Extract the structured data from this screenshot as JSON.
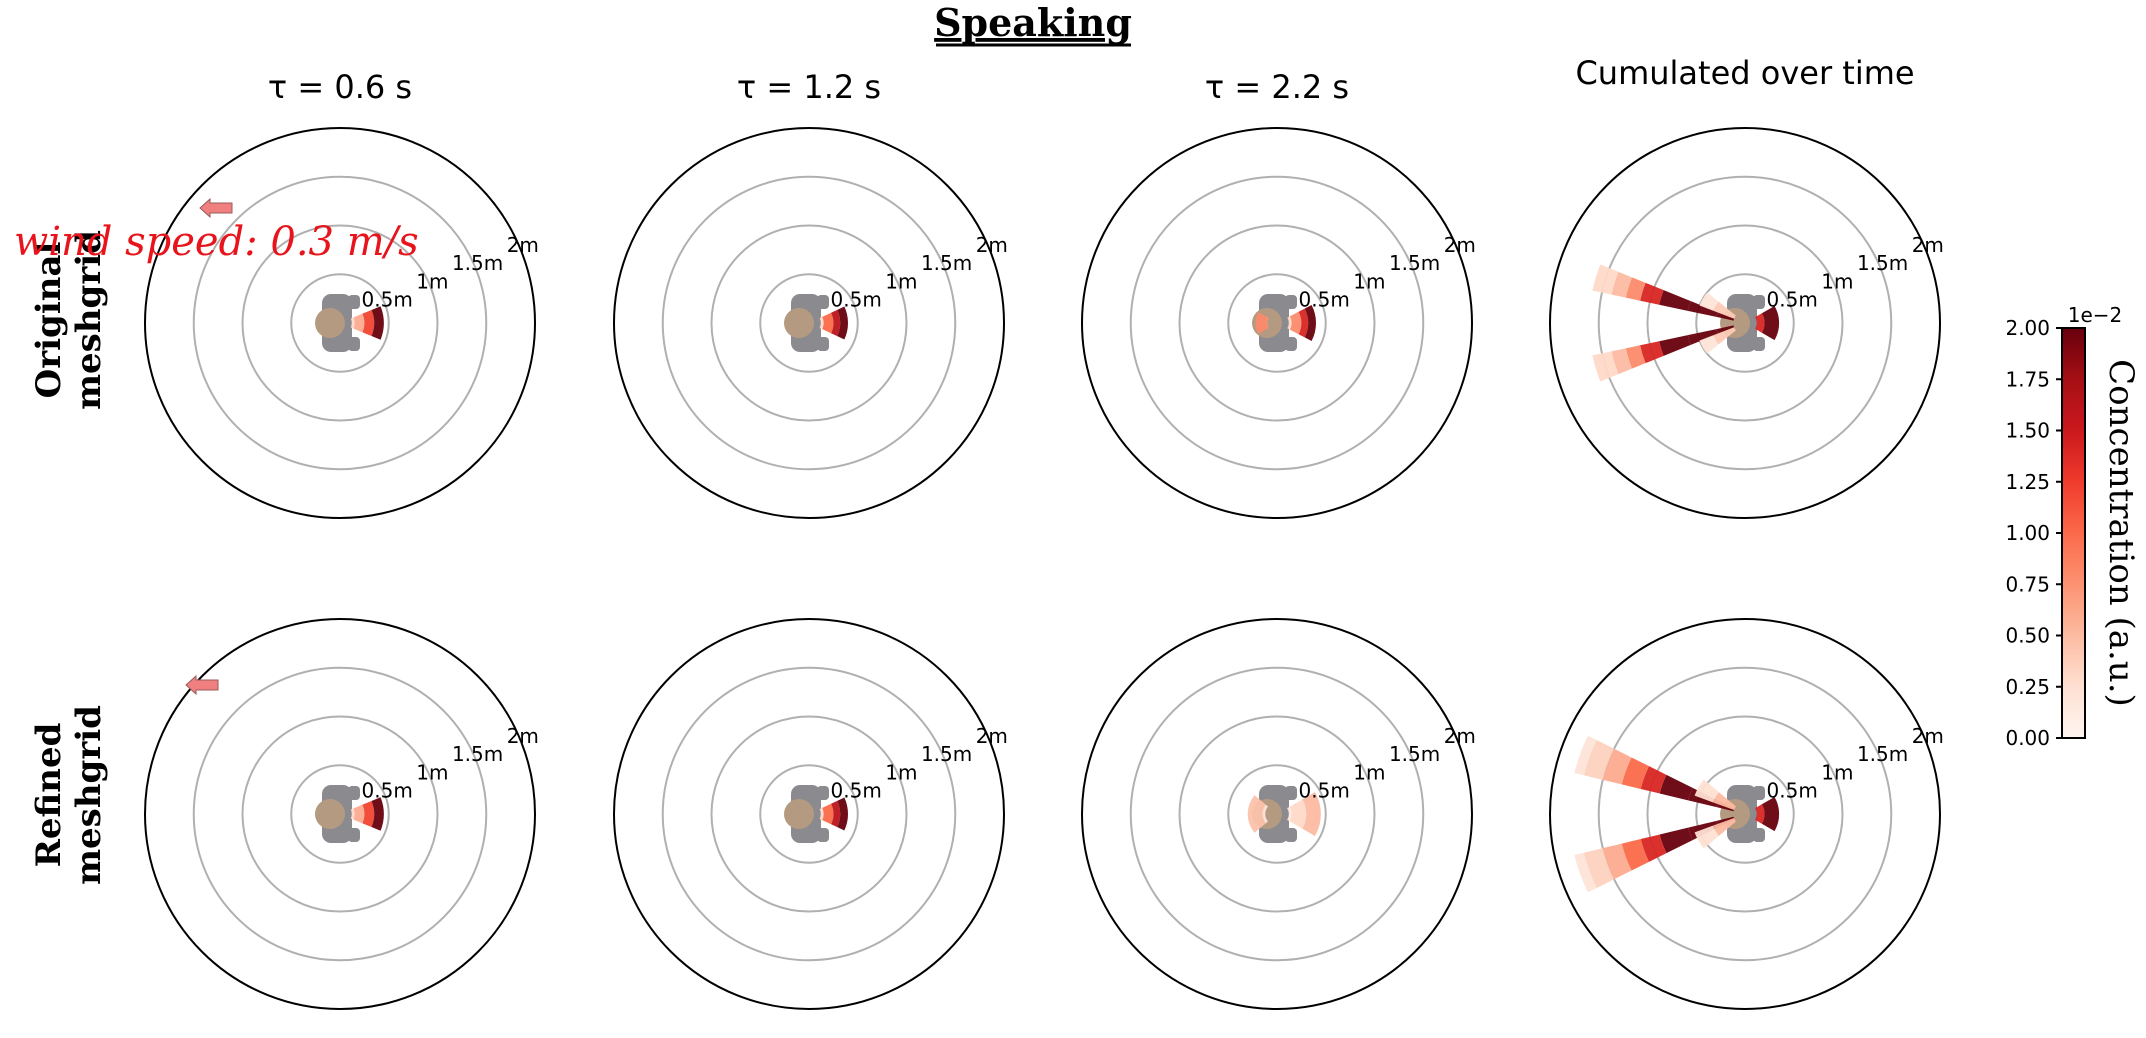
{
  "figure": {
    "title": "Speaking",
    "columns": [
      {
        "label": "τ = 0.6 s"
      },
      {
        "label": "τ = 1.2 s"
      },
      {
        "label": "τ = 2.2 s"
      },
      {
        "label": "Cumulated over time"
      }
    ],
    "rows": [
      {
        "label_line1": "Original",
        "label_line2": "meshgrid"
      },
      {
        "label_line1": "Refined",
        "label_line2": "meshgrid"
      }
    ],
    "wind_label": "wind speed: 0.3 m/s",
    "ring_labels": [
      "0.5m",
      "1m",
      "1.5m",
      "2m"
    ],
    "colorbar": {
      "label": "Concentration (a.u.)",
      "exponent": "1e−2",
      "ticks": [
        "0.00",
        "0.25",
        "0.50",
        "0.75",
        "1.00",
        "1.25",
        "1.50",
        "1.75",
        "2.00"
      ]
    },
    "colors": {
      "wind": "#e8141c",
      "max": "#67000d",
      "min": "#fff5f0",
      "person": "#8a8a8f",
      "head": "#b59a82",
      "arrow": "#f08080"
    }
  },
  "chart_data": {
    "type": "polar-concentration-map",
    "title": "Speaking",
    "radial_rings_m": [
      0.5,
      1,
      1.5,
      2
    ],
    "colorbar_range": [
      0,
      2.0
    ],
    "colorbar_scale": "1e-2",
    "colorbar_label": "Concentration (a.u.)",
    "panels": [
      {
        "row": "Original meshgrid",
        "col": "τ = 0.6 s",
        "plumes": [
          {
            "center_deg": 0,
            "width_deg": 45,
            "radii_m": [
              0.15,
              0.25,
              0.35,
              0.45
            ],
            "values": [
              0.3,
              0.6,
              1.2,
              2.0
            ]
          }
        ]
      },
      {
        "row": "Original meshgrid",
        "col": "τ = 1.2 s",
        "plumes": [
          {
            "center_deg": 0,
            "width_deg": 50,
            "radii_m": [
              0.15,
              0.25,
              0.32,
              0.4
            ],
            "values": [
              0.3,
              1.0,
              1.6,
              2.0
            ]
          }
        ]
      },
      {
        "row": "Original meshgrid",
        "col": "τ = 2.2 s",
        "plumes": [
          {
            "center_deg": 0,
            "width_deg": 55,
            "radii_m": [
              0.15,
              0.25,
              0.32,
              0.4
            ],
            "values": [
              0.3,
              0.8,
              1.4,
              2.0
            ]
          },
          {
            "center_deg": 180,
            "width_deg": 60,
            "radii_m": [
              0.1,
              0.22
            ],
            "values": [
              0.4,
              0.8
            ]
          }
        ]
      },
      {
        "row": "Original meshgrid",
        "col": "Cumulated over time",
        "plumes": [
          {
            "center_deg": 0,
            "width_deg": 60,
            "radii_m": [
              0.2,
              0.35
            ],
            "values": [
              1.4,
              2.0
            ]
          },
          {
            "center_deg": 163,
            "width_deg": 10,
            "radii_m": [
              0.3,
              0.6,
              0.9,
              1.1,
              1.25,
              1.4,
              1.6
            ],
            "values": [
              2.0,
              2.0,
              2.0,
              1.4,
              0.8,
              0.5,
              0.3
            ]
          },
          {
            "center_deg": 197,
            "width_deg": 10,
            "radii_m": [
              0.3,
              0.6,
              0.9,
              1.1,
              1.25,
              1.4,
              1.6
            ],
            "values": [
              2.0,
              2.0,
              2.0,
              1.4,
              0.8,
              0.5,
              0.3
            ]
          },
          {
            "center_deg": 150,
            "width_deg": 18,
            "radii_m": [
              0.35,
              0.5
            ],
            "values": [
              0.4,
              0.2
            ]
          },
          {
            "center_deg": 210,
            "width_deg": 18,
            "radii_m": [
              0.35,
              0.5
            ],
            "values": [
              0.4,
              0.2
            ]
          }
        ]
      },
      {
        "row": "Refined meshgrid",
        "col": "τ = 0.6 s",
        "plumes": [
          {
            "center_deg": 0,
            "width_deg": 45,
            "radii_m": [
              0.15,
              0.25,
              0.35,
              0.45
            ],
            "values": [
              0.3,
              0.6,
              1.2,
              2.0
            ]
          }
        ]
      },
      {
        "row": "Refined meshgrid",
        "col": "τ = 1.2 s",
        "plumes": [
          {
            "center_deg": 0,
            "width_deg": 50,
            "radii_m": [
              0.15,
              0.25,
              0.32,
              0.4
            ],
            "values": [
              0.3,
              1.0,
              1.6,
              2.0
            ]
          }
        ]
      },
      {
        "row": "Refined meshgrid",
        "col": "τ = 2.2 s",
        "plumes": [
          {
            "center_deg": 0,
            "width_deg": 60,
            "radii_m": [
              0.15,
              0.3,
              0.45
            ],
            "values": [
              0.15,
              0.3,
              0.5
            ]
          },
          {
            "center_deg": 180,
            "width_deg": 80,
            "radii_m": [
              0.15,
              0.3
            ],
            "values": [
              0.2,
              0.45
            ]
          }
        ]
      },
      {
        "row": "Refined meshgrid",
        "col": "Cumulated over time",
        "plumes": [
          {
            "center_deg": 0,
            "width_deg": 60,
            "radii_m": [
              0.2,
              0.35
            ],
            "values": [
              1.4,
              2.0
            ]
          },
          {
            "center_deg": 160,
            "width_deg": 13,
            "radii_m": [
              0.3,
              0.6,
              0.9,
              1.1,
              1.3,
              1.5,
              1.7,
              1.8
            ],
            "values": [
              2.0,
              2.0,
              2.0,
              1.4,
              1.0,
              0.6,
              0.35,
              0.2
            ]
          },
          {
            "center_deg": 200,
            "width_deg": 13,
            "radii_m": [
              0.3,
              0.6,
              0.9,
              1.1,
              1.3,
              1.5,
              1.7,
              1.8
            ],
            "values": [
              2.0,
              2.0,
              2.0,
              1.4,
              1.0,
              0.6,
              0.35,
              0.2
            ]
          },
          {
            "center_deg": 150,
            "width_deg": 20,
            "radii_m": [
              0.35,
              0.55
            ],
            "values": [
              0.5,
              0.25
            ]
          },
          {
            "center_deg": 210,
            "width_deg": 20,
            "radii_m": [
              0.35,
              0.55
            ],
            "values": [
              0.5,
              0.25
            ]
          }
        ]
      }
    ]
  }
}
